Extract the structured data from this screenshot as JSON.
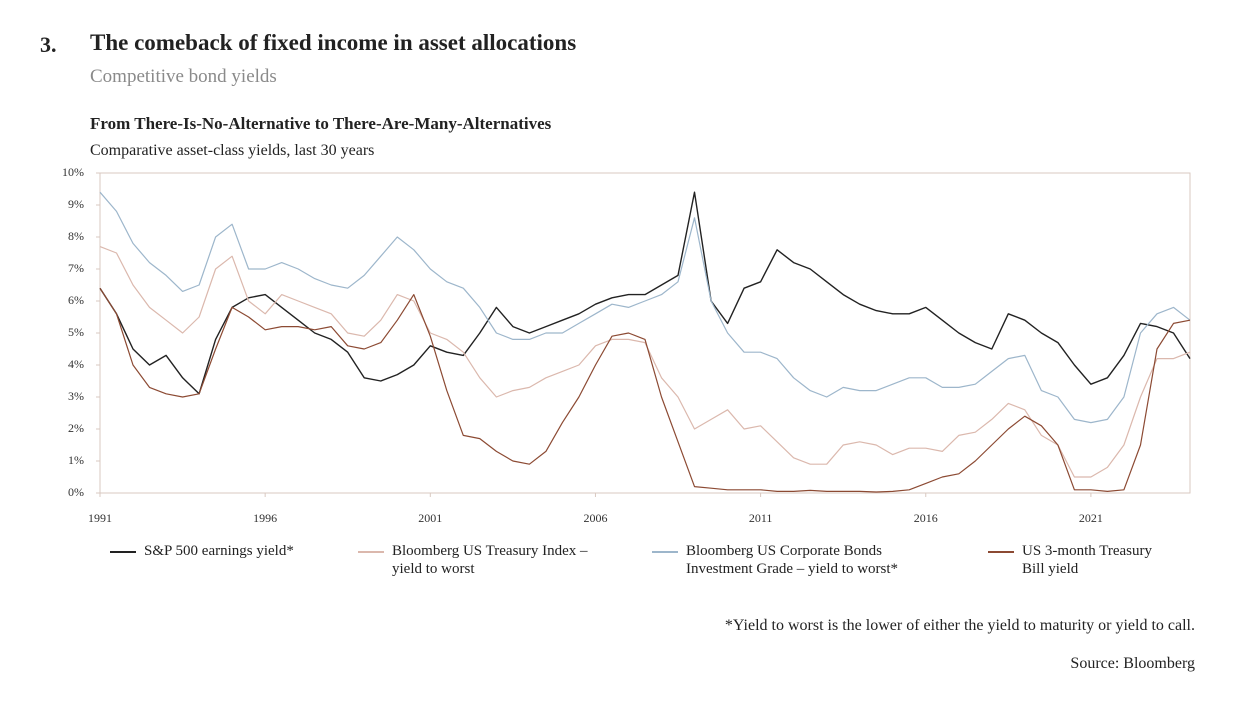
{
  "header": {
    "number": "3.",
    "title": "The comeback of fixed income in asset allocations",
    "subtitle": "Competitive bond yields"
  },
  "chart_data": {
    "type": "line",
    "title": "From There-Is-No-Alternative to There-Are-Many-Alternatives",
    "subtitle": "Comparative asset-class yields, last 30 years",
    "x": [
      1991,
      1991.5,
      1992,
      1992.5,
      1993,
      1993.5,
      1994,
      1994.5,
      1995,
      1995.5,
      1996,
      1996.5,
      1997,
      1997.5,
      1998,
      1998.5,
      1999,
      1999.5,
      2000,
      2000.5,
      2001,
      2001.5,
      2002,
      2002.5,
      2003,
      2003.5,
      2004,
      2004.5,
      2005,
      2005.5,
      2006,
      2006.5,
      2007,
      2007.5,
      2008,
      2008.5,
      2009,
      2009.5,
      2010,
      2010.5,
      2011,
      2011.5,
      2012,
      2012.5,
      2013,
      2013.5,
      2014,
      2014.5,
      2015,
      2015.5,
      2016,
      2016.5,
      2017,
      2017.5,
      2018,
      2018.5,
      2019,
      2019.5,
      2020,
      2020.5,
      2021,
      2021.5,
      2022,
      2022.5,
      2023,
      2023.5,
      2024
    ],
    "xlim": [
      1991,
      2024
    ],
    "xticks": [
      1991,
      1996,
      2001,
      2006,
      2011,
      2016,
      2021
    ],
    "ylim": [
      0,
      10
    ],
    "yticks": [
      {
        "value": 0,
        "label": "0%"
      },
      {
        "value": 1,
        "label": "1%"
      },
      {
        "value": 2,
        "label": "2%"
      },
      {
        "value": 3,
        "label": "3%"
      },
      {
        "value": 4,
        "label": "4%"
      },
      {
        "value": 5,
        "label": "5%"
      },
      {
        "value": 6,
        "label": "6%"
      },
      {
        "value": 7,
        "label": "7%"
      },
      {
        "value": 8,
        "label": "8%"
      },
      {
        "value": 9,
        "label": "9%"
      },
      {
        "value": 10,
        "label": "10%"
      }
    ],
    "series": [
      {
        "name": "S&P 500 earnings yield*",
        "color": "#222222",
        "values": [
          6.4,
          5.6,
          4.5,
          4.0,
          4.3,
          3.6,
          3.1,
          4.8,
          5.8,
          6.1,
          6.2,
          5.8,
          5.4,
          5.0,
          4.8,
          4.4,
          3.6,
          3.5,
          3.7,
          4.0,
          4.6,
          4.4,
          4.3,
          5.0,
          5.8,
          5.2,
          5.0,
          5.2,
          5.4,
          5.6,
          5.9,
          6.1,
          6.2,
          6.2,
          6.5,
          6.8,
          9.4,
          6.0,
          5.3,
          6.4,
          6.6,
          7.6,
          7.2,
          7.0,
          6.6,
          6.2,
          5.9,
          5.7,
          5.6,
          5.6,
          5.8,
          5.4,
          5.0,
          4.7,
          4.5,
          5.6,
          5.4,
          5.0,
          4.7,
          4.0,
          3.4,
          3.6,
          4.3,
          5.3,
          5.2,
          5.0,
          4.2
        ]
      },
      {
        "name": "Bloomberg US Treasury Index – yield to worst",
        "color": "#dbb8ad",
        "values": [
          7.7,
          7.5,
          6.5,
          5.8,
          5.4,
          5.0,
          5.5,
          7.0,
          7.4,
          6.0,
          5.6,
          6.2,
          6.0,
          5.8,
          5.6,
          5.0,
          4.9,
          5.4,
          6.2,
          6.0,
          5.0,
          4.8,
          4.4,
          3.6,
          3.0,
          3.2,
          3.3,
          3.6,
          3.8,
          4.0,
          4.6,
          4.8,
          4.8,
          4.7,
          3.6,
          3.0,
          2.0,
          2.3,
          2.6,
          2.0,
          2.1,
          1.6,
          1.1,
          0.9,
          0.9,
          1.5,
          1.6,
          1.5,
          1.2,
          1.4,
          1.4,
          1.3,
          1.8,
          1.9,
          2.3,
          2.8,
          2.6,
          1.8,
          1.5,
          0.5,
          0.5,
          0.8,
          1.5,
          3.0,
          4.2,
          4.2,
          4.4
        ]
      },
      {
        "name": "Bloomberg US Corporate Bonds Investment Grade – yield to worst*",
        "color": "#9db6cb",
        "values": [
          9.4,
          8.8,
          7.8,
          7.2,
          6.8,
          6.3,
          6.5,
          8.0,
          8.4,
          7.0,
          7.0,
          7.2,
          7.0,
          6.7,
          6.5,
          6.4,
          6.8,
          7.4,
          8.0,
          7.6,
          7.0,
          6.6,
          6.4,
          5.8,
          5.0,
          4.8,
          4.8,
          5.0,
          5.0,
          5.3,
          5.6,
          5.9,
          5.8,
          6.0,
          6.2,
          6.6,
          8.6,
          6.0,
          5.0,
          4.4,
          4.4,
          4.2,
          3.6,
          3.2,
          3.0,
          3.3,
          3.2,
          3.2,
          3.4,
          3.6,
          3.6,
          3.3,
          3.3,
          3.4,
          3.8,
          4.2,
          4.3,
          3.2,
          3.0,
          2.3,
          2.2,
          2.3,
          3.0,
          5.0,
          5.6,
          5.8,
          5.4
        ]
      },
      {
        "name": "US 3-month Treasury Bill yield",
        "color": "#8c4a33",
        "values": [
          6.4,
          5.6,
          4.0,
          3.3,
          3.1,
          3.0,
          3.1,
          4.5,
          5.8,
          5.5,
          5.1,
          5.2,
          5.2,
          5.1,
          5.2,
          4.6,
          4.5,
          4.7,
          5.4,
          6.2,
          4.9,
          3.2,
          1.8,
          1.7,
          1.3,
          1.0,
          0.9,
          1.3,
          2.2,
          3.0,
          4.0,
          4.9,
          5.0,
          4.8,
          3.0,
          1.6,
          0.2,
          0.15,
          0.1,
          0.1,
          0.1,
          0.05,
          0.05,
          0.08,
          0.05,
          0.05,
          0.05,
          0.03,
          0.05,
          0.1,
          0.3,
          0.5,
          0.6,
          1.0,
          1.5,
          2.0,
          2.4,
          2.1,
          1.5,
          0.1,
          0.1,
          0.05,
          0.1,
          1.5,
          4.5,
          5.3,
          5.4
        ]
      }
    ]
  },
  "notes": [
    "*Yield to worst is the lower of either the yield to maturity or yield to call.",
    "Source: Bloomberg"
  ]
}
